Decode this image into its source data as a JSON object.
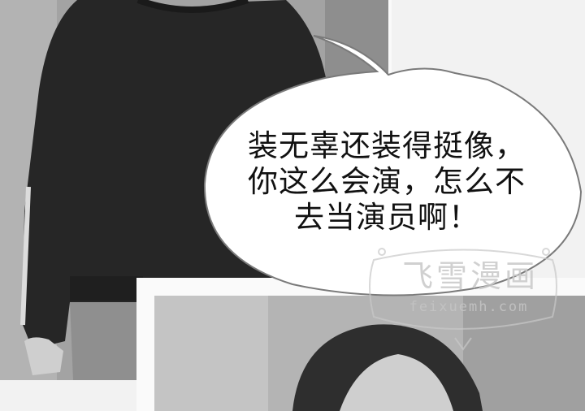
{
  "dialogue": {
    "lines": [
      "装无辜还装得挺像，",
      "你这么会演，怎么不",
      "去当演员啊！"
    ]
  },
  "watermark": {
    "title": "飞雪漫画",
    "url": "feixuemh.com"
  },
  "colors": {
    "bubble_fill": "#ffffff",
    "bubble_stroke": "#7a7a7a",
    "text": "#111111",
    "panel_border": "#fafafa"
  }
}
